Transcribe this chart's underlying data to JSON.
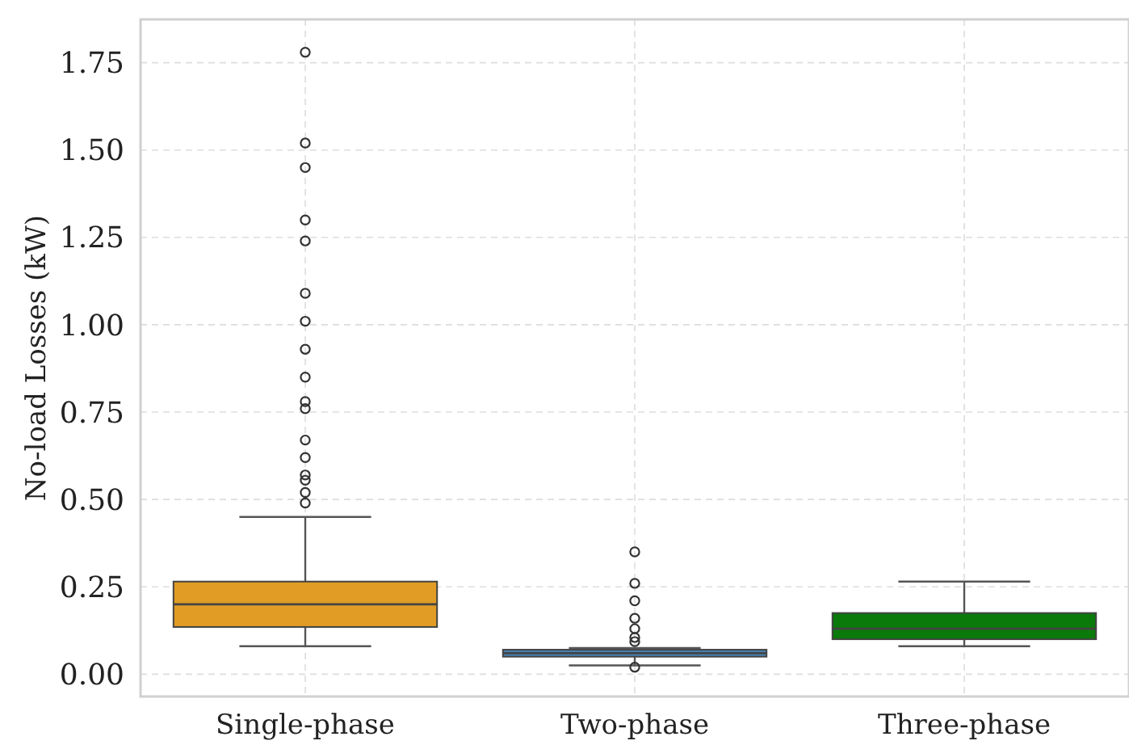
{
  "chart_data": {
    "type": "box",
    "ylabel": "No-load Losses (kW)",
    "categories": [
      "Single-phase",
      "Two-phase",
      "Three-phase"
    ],
    "colors": [
      "#e09c24",
      "#4682b4",
      "#0a7a0a"
    ],
    "boxes": [
      {
        "low": 0.08,
        "q1": 0.135,
        "median": 0.2,
        "q3": 0.265,
        "high": 0.45,
        "outliers": [
          1.78,
          1.52,
          1.45,
          1.3,
          1.24,
          1.09,
          1.01,
          0.93,
          0.85,
          0.78,
          0.76,
          0.67,
          0.62,
          0.57,
          0.555,
          0.52,
          0.49
        ]
      },
      {
        "low": 0.025,
        "q1": 0.05,
        "median": 0.06,
        "q3": 0.07,
        "high": 0.075,
        "outliers": [
          0.35,
          0.26,
          0.21,
          0.16,
          0.13,
          0.105,
          0.093,
          0.02
        ]
      },
      {
        "low": 0.08,
        "q1": 0.1,
        "median": 0.13,
        "q3": 0.175,
        "high": 0.265
      }
    ],
    "ylim": [
      -0.064,
      1.874
    ],
    "yticks": [
      {
        "value": 0,
        "label": "0.00"
      },
      {
        "value": 0.25,
        "label": "0.25"
      },
      {
        "value": 0.5,
        "label": "0.50"
      },
      {
        "value": 0.75,
        "label": "0.75"
      },
      {
        "value": 1,
        "label": "1.00"
      },
      {
        "value": 1.25,
        "label": "1.25"
      },
      {
        "value": 1.5,
        "label": "1.50"
      },
      {
        "value": 1.75,
        "label": "1.75"
      }
    ],
    "grid": true
  }
}
